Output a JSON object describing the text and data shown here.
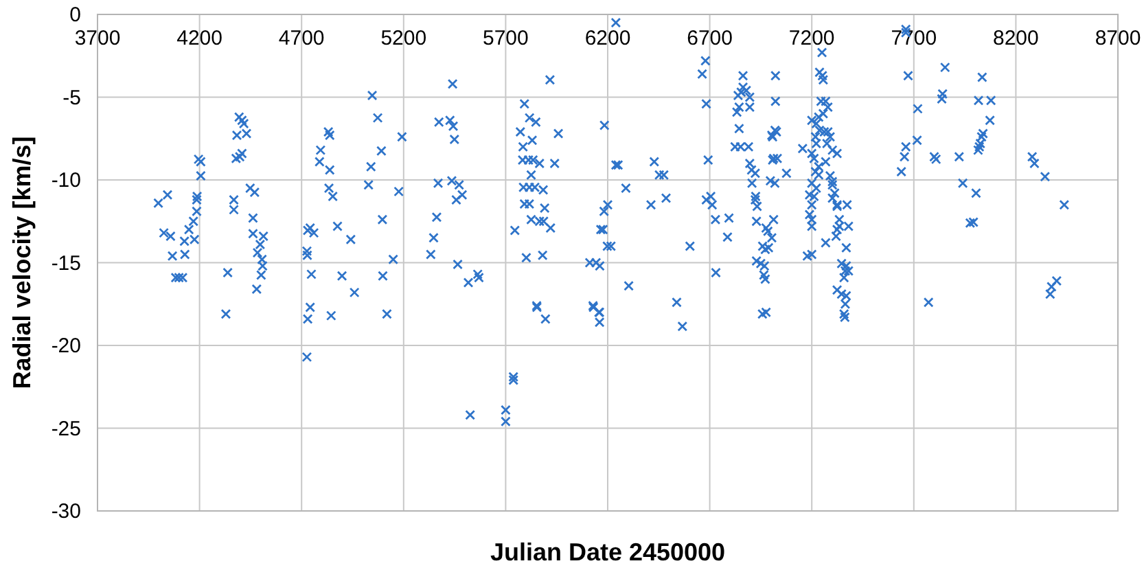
{
  "chart_data": {
    "type": "scatter",
    "xlabel": "Julian Date 2450000",
    "ylabel": "Radial velocity [km/s]",
    "xlim": [
      3700,
      8700
    ],
    "xticks": [
      3700,
      4200,
      4700,
      5200,
      5700,
      6200,
      6700,
      7200,
      7700,
      8200,
      8700
    ],
    "ylim": [
      -30,
      0
    ],
    "yticks": [
      -30,
      -25,
      -20,
      -15,
      -10,
      -5,
      0
    ],
    "grid": true,
    "marker": "cross",
    "series": [
      {
        "color": "#2f74c9",
        "x": [
          3998,
          4043,
          4025,
          4058,
          4067,
          4126,
          4128,
          4148,
          4170,
          4175,
          4186,
          4186,
          4188,
          4195,
          4206,
          4206,
          4083,
          4099,
          4117,
          4338,
          4329,
          4368,
          4368,
          4379,
          4383,
          4394,
          4408,
          4417,
          4430,
          4397,
          4408,
          4448,
          4470,
          4462,
          4462,
          4513,
          4497,
          4484,
          4506,
          4509,
          4502,
          4480,
          4742,
          4730,
          4760,
          4726,
          4728,
          4748,
          4793,
          4788,
          4838,
          4831,
          4838,
          4834,
          4853,
          4876,
          4898,
          4941,
          4959,
          5028,
          5040,
          5046,
          5073,
          5091,
          5096,
          5098,
          5149,
          5176,
          5192,
          4730,
          4742,
          4726,
          4845,
          5118,
          5517,
          5569,
          5526,
          5700,
          5700,
          5738,
          5738,
          5853,
          5895,
          6130,
          6160,
          6160,
          5333,
          5347,
          5362,
          5369,
          5373,
          5427,
          5443,
          5449,
          5440,
          5436,
          5472,
          5458,
          5487,
          5465,
          5563,
          5745,
          5792,
          5772,
          5817,
          5848,
          5830,
          5785,
          5783,
          5812,
          5834,
          5866,
          5825,
          5787,
          5816,
          5843,
          5792,
          5816,
          5825,
          5866,
          5886,
          5884,
          5891,
          5920,
          5801,
          5881,
          5917,
          5958,
          5940,
          5852,
          6184,
          6240,
          6251,
          6289,
          6200,
          6182,
          6166,
          6177,
          6198,
          6216,
          6112,
          6143,
          6161,
          6128,
          6157,
          6240,
          6303,
          6412,
          6428,
          6453,
          6475,
          6486,
          6538,
          6566,
          6603,
          6679,
          6663,
          6683,
          6692,
          6683,
          6705,
          6712,
          6728,
          6730,
          6794,
          6787,
          6863,
          6839,
          6854,
          6863,
          6879,
          6896,
          6896,
          6833,
          6844,
          6844,
          6824,
          6851,
          6890,
          6896,
          6905,
          6923,
          6907,
          6925,
          6923,
          6932,
          6929,
          6976,
          6985,
          6959,
          6972,
          6988,
          6929,
          6950,
          6968,
          6965,
          6972,
          6976,
          6958,
          7022,
          7022,
          7027,
          7008,
          7008,
          7031,
          6997,
          7019,
          7020,
          7004,
          7013,
          7013,
          7004,
          7076,
          7155,
          7178,
          7200,
          7250,
          7238,
          7252,
          7256,
          7245,
          7268,
          7279,
          7256,
          7234,
          7200,
          7222,
          7238,
          7261,
          7279,
          7218,
          7290,
          7274,
          7222,
          7301,
          7324,
          7200,
          7211,
          7268,
          7234,
          7218,
          7234,
          7290,
          7301,
          7200,
          7222,
          7301,
          7312,
          7189,
          7211,
          7200,
          7301,
          7324,
          7324,
          7373,
          7189,
          7200,
          7200,
          7335,
          7335,
          7380,
          7324,
          7319,
          7268,
          7369,
          7346,
          7369,
          7380,
          7364,
          7358,
          7324,
          7346,
          7369,
          7364,
          7358,
          7362,
          7661,
          7661,
          7672,
          7719,
          7716,
          7661,
          7654,
          7639,
          7853,
          7841,
          7837,
          7800,
          7809,
          7772,
          7922,
          7940,
          8005,
          7976,
          7992,
          8035,
          8017,
          8078,
          8073,
          8039,
          8032,
          8026,
          8021,
          8015,
          8280,
          8291,
          8343,
          8437,
          8400,
          8375,
          8368
        ],
        "values": [
          -11.4,
          -10.9,
          -13.2,
          -13.4,
          -14.6,
          -13.7,
          -14.5,
          -13.0,
          -12.5,
          -13.6,
          -11.9,
          -11.2,
          -11.0,
          -8.75,
          -8.9,
          -9.75,
          -15.9,
          -15.9,
          -15.9,
          -15.6,
          -18.1,
          -11.2,
          -11.8,
          -8.7,
          -7.3,
          -6.2,
          -6.4,
          -6.6,
          -7.2,
          -8.6,
          -8.4,
          -10.5,
          -10.75,
          -12.3,
          -13.25,
          -13.4,
          -13.9,
          -14.4,
          -14.8,
          -15.2,
          -15.75,
          -16.6,
          -12.9,
          -13.05,
          -13.2,
          -14.3,
          -14.55,
          -15.7,
          -8.2,
          -8.9,
          -7.3,
          -7.1,
          -9.4,
          -10.5,
          -11.0,
          -12.8,
          -15.8,
          -13.6,
          -16.8,
          -10.3,
          -9.2,
          -4.9,
          -6.25,
          -8.25,
          -12.4,
          -15.8,
          -14.8,
          -10.7,
          -7.4,
          -18.4,
          -17.7,
          -20.7,
          -18.2,
          -18.1,
          -16.2,
          -15.9,
          -24.2,
          -23.9,
          -24.6,
          -21.9,
          -22.1,
          -17.7,
          -18.4,
          -17.7,
          -18.0,
          -18.6,
          -14.5,
          -13.5,
          -12.25,
          -10.2,
          -6.5,
          -6.4,
          -6.75,
          -7.55,
          -4.2,
          -10.05,
          -10.3,
          -11.2,
          -10.9,
          -15.1,
          -15.7,
          -13.05,
          -5.4,
          -7.1,
          -6.25,
          -6.5,
          -7.6,
          -8.0,
          -8.8,
          -8.8,
          -8.8,
          -9.0,
          -9.7,
          -10.45,
          -10.45,
          -10.45,
          -11.45,
          -11.45,
          -12.4,
          -12.5,
          -12.5,
          -10.6,
          -11.7,
          -12.9,
          -14.7,
          -14.55,
          -3.95,
          -7.2,
          -9.0,
          -17.6,
          -6.7,
          -9.1,
          -9.1,
          -10.5,
          -11.5,
          -11.9,
          -13.0,
          -13.0,
          -14.0,
          -14.0,
          -15.0,
          -15.0,
          -15.2,
          -17.6,
          -18.0,
          -0.5,
          -16.4,
          -11.5,
          -8.9,
          -9.7,
          -9.7,
          -11.1,
          -17.4,
          -18.85,
          -14.0,
          -2.8,
          -3.6,
          -5.4,
          -8.8,
          -11.2,
          -11.0,
          -11.5,
          -12.4,
          -15.6,
          -12.3,
          -13.45,
          -3.7,
          -4.9,
          -4.7,
          -4.4,
          -4.6,
          -5.0,
          -5.6,
          -5.9,
          -5.6,
          -6.9,
          -8.0,
          -8.0,
          -8.0,
          -9.0,
          -9.4,
          -9.6,
          -10.2,
          -11.0,
          -11.2,
          -11.6,
          -12.5,
          -12.9,
          -13.1,
          -14.0,
          -14.2,
          -14.1,
          -14.9,
          -15.05,
          -15.2,
          -15.75,
          -16.0,
          -18.0,
          -18.1,
          -3.7,
          -5.25,
          -7.1,
          -7.4,
          -8.8,
          -8.7,
          -10.05,
          -10.2,
          -7.0,
          -7.3,
          -8.7,
          -12.4,
          -13.5,
          -9.6,
          -8.1,
          -14.6,
          -14.5,
          -2.3,
          -3.5,
          -3.7,
          -3.95,
          -5.25,
          -5.25,
          -5.6,
          -6.0,
          -6.2,
          -6.4,
          -6.6,
          -7.0,
          -7.1,
          -7.1,
          -7.4,
          -7.4,
          -7.8,
          -7.8,
          -8.2,
          -8.4,
          -8.4,
          -8.7,
          -8.9,
          -9.2,
          -9.5,
          -9.7,
          -9.75,
          -10.1,
          -10.2,
          -10.5,
          -10.3,
          -10.8,
          -10.9,
          -11.0,
          -11.5,
          -11.1,
          -11.5,
          -11.6,
          -11.5,
          -12.1,
          -12.4,
          -12.8,
          -12.4,
          -12.8,
          -12.8,
          -13.0,
          -13.4,
          -13.8,
          -14.1,
          -15.05,
          -15.2,
          -15.5,
          -15.5,
          -15.9,
          -16.65,
          -16.9,
          -17.0,
          -17.5,
          -18.1,
          -18.3,
          -0.9,
          -1.1,
          -3.7,
          -5.7,
          -7.6,
          -8.0,
          -8.6,
          -9.5,
          -3.2,
          -4.8,
          -5.1,
          -8.6,
          -8.75,
          -17.4,
          -8.6,
          -10.2,
          -10.8,
          -12.6,
          -12.55,
          -3.8,
          -5.2,
          -5.2,
          -6.4,
          -7.2,
          -7.4,
          -7.8,
          -8.0,
          -8.2,
          -8.6,
          -9.0,
          -9.8,
          -11.5,
          -16.1,
          -16.45,
          -16.9
        ]
      }
    ]
  }
}
